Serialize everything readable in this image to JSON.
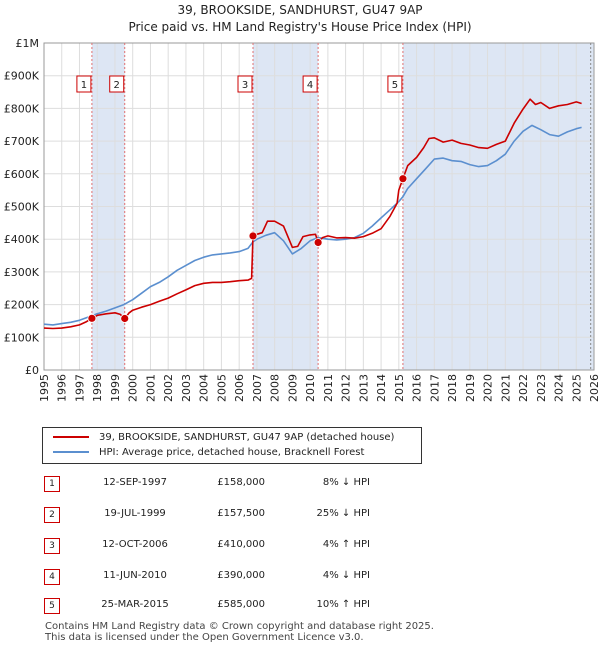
{
  "header": {
    "title": "39, BROOKSIDE, SANDHURST, GU47 9AP",
    "subtitle": "Price paid vs. HM Land Registry's House Price Index (HPI)"
  },
  "colors": {
    "property": "#cc0000",
    "hpi": "#5b8fcf",
    "shade": "#dde6f4",
    "grid": "#dddddd"
  },
  "chart_data": {
    "type": "line",
    "ylim": [
      0,
      1000000
    ],
    "xlim": [
      1995,
      2026
    ],
    "y_ticks": [
      {
        "value": 0,
        "label": "£0"
      },
      {
        "value": 100000,
        "label": "£100K"
      },
      {
        "value": 200000,
        "label": "£200K"
      },
      {
        "value": 300000,
        "label": "£300K"
      },
      {
        "value": 400000,
        "label": "£400K"
      },
      {
        "value": 500000,
        "label": "£500K"
      },
      {
        "value": 600000,
        "label": "£600K"
      },
      {
        "value": 700000,
        "label": "£700K"
      },
      {
        "value": 800000,
        "label": "£800K"
      },
      {
        "value": 900000,
        "label": "£900K"
      },
      {
        "value": 1000000,
        "label": "£1M"
      }
    ],
    "x_ticks": [
      "1995",
      "1996",
      "1997",
      "1998",
      "1999",
      "2000",
      "2001",
      "2002",
      "2003",
      "2004",
      "2005",
      "2006",
      "2007",
      "2008",
      "2009",
      "2010",
      "2011",
      "2012",
      "2013",
      "2014",
      "2015",
      "2016",
      "2017",
      "2018",
      "2019",
      "2020",
      "2021",
      "2022",
      "2023",
      "2024",
      "2025",
      "2026"
    ],
    "future_from": 2025.25,
    "shaded_periods": [
      [
        1997.7,
        1999.55
      ],
      [
        2006.78,
        2010.45
      ],
      [
        2015.23,
        2026
      ]
    ],
    "series": [
      {
        "name": "39, BROOKSIDE, SANDHURST, GU47 9AP (detached house)",
        "points": [
          [
            1995,
            128000
          ],
          [
            1995.5,
            127000
          ],
          [
            1996,
            128000
          ],
          [
            1996.5,
            132000
          ],
          [
            1997,
            138000
          ],
          [
            1997.4,
            148000
          ],
          [
            1997.7,
            158000
          ],
          [
            1998,
            167000
          ],
          [
            1998.5,
            172000
          ],
          [
            1999,
            175000
          ],
          [
            1999.3,
            170000
          ],
          [
            1999.55,
            157500
          ],
          [
            1999.8,
            175000
          ],
          [
            2000,
            183000
          ],
          [
            2000.5,
            192000
          ],
          [
            2001,
            200000
          ],
          [
            2001.5,
            210000
          ],
          [
            2002,
            220000
          ],
          [
            2002.5,
            233000
          ],
          [
            2003,
            245000
          ],
          [
            2003.5,
            258000
          ],
          [
            2004,
            265000
          ],
          [
            2004.5,
            268000
          ],
          [
            2005,
            268000
          ],
          [
            2005.5,
            270000
          ],
          [
            2006,
            273000
          ],
          [
            2006.5,
            275000
          ],
          [
            2006.7,
            280000
          ],
          [
            2006.78,
            410000
          ],
          [
            2007,
            415000
          ],
          [
            2007.3,
            420000
          ],
          [
            2007.6,
            455000
          ],
          [
            2008,
            455000
          ],
          [
            2008.5,
            440000
          ],
          [
            2009,
            375000
          ],
          [
            2009.3,
            378000
          ],
          [
            2009.6,
            408000
          ],
          [
            2010,
            413000
          ],
          [
            2010.3,
            415000
          ],
          [
            2010.45,
            390000
          ],
          [
            2010.7,
            405000
          ],
          [
            2011,
            410000
          ],
          [
            2011.5,
            404000
          ],
          [
            2012,
            405000
          ],
          [
            2012.5,
            403000
          ],
          [
            2013,
            408000
          ],
          [
            2013.5,
            418000
          ],
          [
            2014,
            432000
          ],
          [
            2014.5,
            470000
          ],
          [
            2014.9,
            510000
          ],
          [
            2015,
            550000
          ],
          [
            2015.23,
            585000
          ],
          [
            2015.5,
            625000
          ],
          [
            2016,
            650000
          ],
          [
            2016.4,
            680000
          ],
          [
            2016.7,
            708000
          ],
          [
            2017,
            710000
          ],
          [
            2017.5,
            697000
          ],
          [
            2018,
            703000
          ],
          [
            2018.5,
            693000
          ],
          [
            2019,
            688000
          ],
          [
            2019.5,
            680000
          ],
          [
            2020,
            678000
          ],
          [
            2020.5,
            690000
          ],
          [
            2021,
            700000
          ],
          [
            2021.5,
            755000
          ],
          [
            2022,
            798000
          ],
          [
            2022.4,
            828000
          ],
          [
            2022.7,
            812000
          ],
          [
            2023,
            818000
          ],
          [
            2023.5,
            800000
          ],
          [
            2024,
            808000
          ],
          [
            2024.5,
            812000
          ],
          [
            2025,
            820000
          ],
          [
            2025.3,
            815000
          ]
        ]
      },
      {
        "name": "HPI: Average price, detached house, Bracknell Forest",
        "points": [
          [
            1995,
            140000
          ],
          [
            1995.5,
            138000
          ],
          [
            1996,
            142000
          ],
          [
            1996.5,
            146000
          ],
          [
            1997,
            152000
          ],
          [
            1997.5,
            162000
          ],
          [
            1998,
            172000
          ],
          [
            1998.5,
            180000
          ],
          [
            1999,
            190000
          ],
          [
            1999.5,
            200000
          ],
          [
            2000,
            215000
          ],
          [
            2000.5,
            235000
          ],
          [
            2001,
            255000
          ],
          [
            2001.5,
            268000
          ],
          [
            2002,
            285000
          ],
          [
            2002.5,
            305000
          ],
          [
            2003,
            320000
          ],
          [
            2003.5,
            335000
          ],
          [
            2004,
            345000
          ],
          [
            2004.5,
            352000
          ],
          [
            2005,
            355000
          ],
          [
            2005.5,
            358000
          ],
          [
            2006,
            362000
          ],
          [
            2006.5,
            372000
          ],
          [
            2006.78,
            392000
          ],
          [
            2007,
            400000
          ],
          [
            2007.5,
            412000
          ],
          [
            2008,
            420000
          ],
          [
            2008.5,
            395000
          ],
          [
            2009,
            355000
          ],
          [
            2009.5,
            372000
          ],
          [
            2010,
            395000
          ],
          [
            2010.45,
            405000
          ],
          [
            2011,
            400000
          ],
          [
            2011.5,
            398000
          ],
          [
            2012,
            400000
          ],
          [
            2012.5,
            405000
          ],
          [
            2013,
            418000
          ],
          [
            2013.5,
            440000
          ],
          [
            2014,
            465000
          ],
          [
            2014.5,
            490000
          ],
          [
            2015,
            515000
          ],
          [
            2015.23,
            530000
          ],
          [
            2015.5,
            555000
          ],
          [
            2016,
            585000
          ],
          [
            2016.5,
            615000
          ],
          [
            2017,
            645000
          ],
          [
            2017.5,
            648000
          ],
          [
            2018,
            640000
          ],
          [
            2018.5,
            638000
          ],
          [
            2019,
            628000
          ],
          [
            2019.5,
            622000
          ],
          [
            2020,
            625000
          ],
          [
            2020.5,
            640000
          ],
          [
            2021,
            660000
          ],
          [
            2021.5,
            700000
          ],
          [
            2022,
            730000
          ],
          [
            2022.5,
            748000
          ],
          [
            2023,
            735000
          ],
          [
            2023.5,
            720000
          ],
          [
            2024,
            715000
          ],
          [
            2024.5,
            728000
          ],
          [
            2025,
            738000
          ],
          [
            2025.3,
            742000
          ]
        ]
      }
    ],
    "sales": [
      {
        "num": "1",
        "x": 1997.7,
        "value": 158000
      },
      {
        "num": "2",
        "x": 1999.55,
        "value": 157500
      },
      {
        "num": "3",
        "x": 2006.78,
        "value": 410000
      },
      {
        "num": "4",
        "x": 2010.45,
        "value": 390000
      },
      {
        "num": "5",
        "x": 2015.23,
        "value": 585000
      }
    ]
  },
  "legend": {
    "property": "39, BROOKSIDE, SANDHURST, GU47 9AP (detached house)",
    "hpi": "HPI: Average price, detached house, Bracknell Forest"
  },
  "transactions": [
    {
      "num": "1",
      "date": "12-SEP-1997",
      "price": "£158,000",
      "hpi": "8% ↓ HPI"
    },
    {
      "num": "2",
      "date": "19-JUL-1999",
      "price": "£157,500",
      "hpi": "25% ↓ HPI"
    },
    {
      "num": "3",
      "date": "12-OCT-2006",
      "price": "£410,000",
      "hpi": "4% ↑ HPI"
    },
    {
      "num": "4",
      "date": "11-JUN-2010",
      "price": "£390,000",
      "hpi": "4% ↓ HPI"
    },
    {
      "num": "5",
      "date": "25-MAR-2015",
      "price": "£585,000",
      "hpi": "10% ↑ HPI"
    }
  ],
  "footer": {
    "line1": "Contains HM Land Registry data © Crown copyright and database right 2025.",
    "line2": "This data is licensed under the Open Government Licence v3.0."
  }
}
